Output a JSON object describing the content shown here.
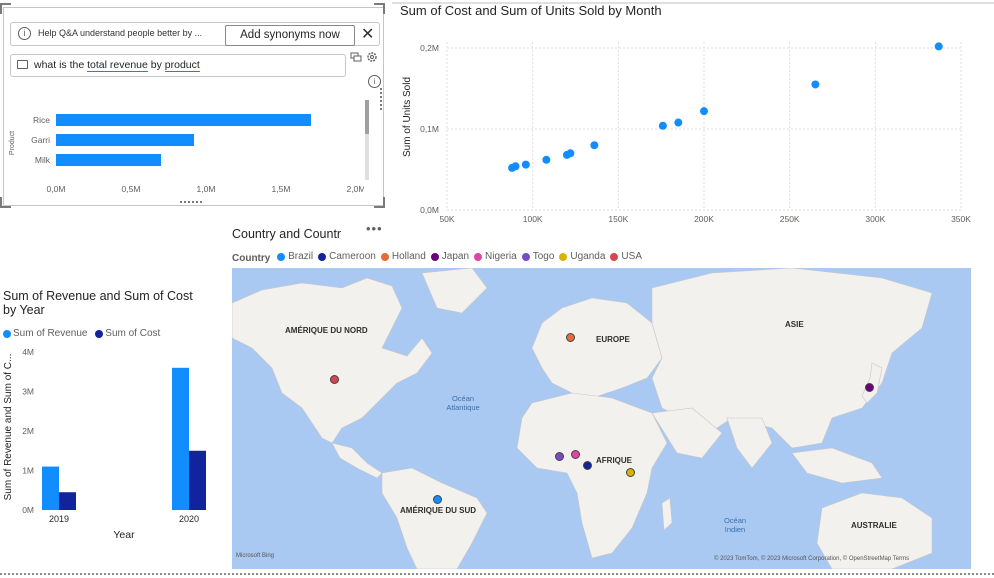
{
  "qna": {
    "banner_text": "Help Q&A understand people better by ...",
    "add_synonyms_label": "Add synonyms now",
    "question_prefix": "what is the ",
    "question_term1": "total revenue",
    "question_mid": " by ",
    "question_term2": "product",
    "ylabel": "Product"
  },
  "qna_chart": {
    "type": "bar",
    "categories": [
      "Rice",
      "Garri",
      "Milk"
    ],
    "values": [
      1.7,
      0.92,
      0.7
    ],
    "xticks": [
      "0,0M",
      "0,5M",
      "1,0M",
      "1,5M",
      "2,0M"
    ],
    "xlim": [
      0,
      2
    ],
    "color": "#118dff"
  },
  "scatter": {
    "title": "Sum of Cost and Sum of Units Sold by Month",
    "ylabel": "Sum of Units Sold",
    "xticks": [
      "50K",
      "100K",
      "150K",
      "200K",
      "250K",
      "300K",
      "350K"
    ],
    "yticks": [
      "0,0M",
      "0,1M",
      "0,2M"
    ]
  },
  "chart_data": [
    {
      "type": "bar",
      "title": "",
      "categories": [
        "Rice",
        "Garri",
        "Milk"
      ],
      "values": [
        1700000,
        920000,
        700000
      ],
      "ylabel": "Product",
      "xlim": [
        0,
        2000000
      ]
    },
    {
      "type": "scatter",
      "title": "Sum of Cost and Sum of Units Sold by Month",
      "xlabel": "",
      "ylabel": "Sum of Units Sold",
      "xlim": [
        50000,
        350000
      ],
      "ylim": [
        0,
        200000
      ],
      "points": [
        [
          88000,
          52000
        ],
        [
          90000,
          54000
        ],
        [
          96000,
          56000
        ],
        [
          108000,
          62000
        ],
        [
          120000,
          68000
        ],
        [
          122000,
          70000
        ],
        [
          136000,
          80000
        ],
        [
          176000,
          104000
        ],
        [
          185000,
          108000
        ],
        [
          200000,
          122000
        ],
        [
          265000,
          155000
        ],
        [
          337000,
          202000
        ]
      ]
    },
    {
      "type": "bar",
      "title": "Sum of Revenue and Sum of Cost by Year",
      "categories": [
        "2019",
        "2020"
      ],
      "series": [
        {
          "name": "Sum of Revenue",
          "values": [
            1100000,
            3600000
          ],
          "color": "#118dff"
        },
        {
          "name": "Sum of Cost",
          "values": [
            450000,
            1500000
          ],
          "color": "#12239e"
        }
      ],
      "xlabel": "Year",
      "ylabel": "Sum of Revenue and Sum of C...",
      "ylim": [
        0,
        4000000
      ],
      "yticks": [
        "0M",
        "1M",
        "2M",
        "3M",
        "4M"
      ]
    }
  ],
  "bar2": {
    "title": "Sum of Revenue and Sum of Cost by Year",
    "legend": [
      "Sum of Revenue",
      "Sum of Cost"
    ],
    "ylabel": "Sum of Revenue and Sum of C...",
    "xlabel": "Year"
  },
  "map": {
    "title": "Country and Countr",
    "legend_label": "Country",
    "countries": [
      {
        "name": "Brazil",
        "color": "#118dff"
      },
      {
        "name": "Cameroon",
        "color": "#12239e"
      },
      {
        "name": "Holland",
        "color": "#e66c37"
      },
      {
        "name": "Japan",
        "color": "#6b007b"
      },
      {
        "name": "Nigeria",
        "color": "#e044a7"
      },
      {
        "name": "Togo",
        "color": "#744ec2"
      },
      {
        "name": "Uganda",
        "color": "#d9b300"
      },
      {
        "name": "USA",
        "color": "#d64550"
      }
    ],
    "continents": {
      "north_america": "AMÉRIQUE DU NORD",
      "europe": "EUROPE",
      "asia": "ASIE",
      "africa": "AFRIQUE",
      "south_america": "AMÉRIQUE DU SUD",
      "australia": "AUSTRALIE"
    },
    "oceans": {
      "atlantic_1": "Océan",
      "atlantic_2": "Atlantique",
      "indian_1": "Océan",
      "indian_2": "Indien"
    },
    "attribution": "© 2023 TomTom, © 2023 Microsoft Corporation, © OpenStreetMap  Terms",
    "bing": "Microsoft Bing"
  }
}
